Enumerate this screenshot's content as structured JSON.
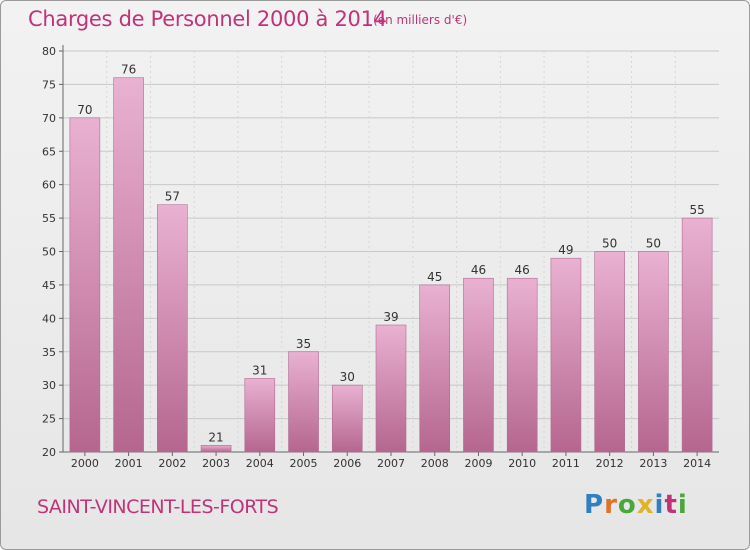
{
  "header": {
    "title": "Charges de Personnel 2000 à 2014",
    "subtitle": "(en milliers d'€)"
  },
  "footer": {
    "commune": "SAINT-VINCENT-LES-FORTS",
    "logo": "Proxiti"
  },
  "colors": {
    "accent": "#c0337a",
    "bar_top": "#e9b1d2",
    "bar_bottom": "#b5668f"
  },
  "chart_data": {
    "type": "bar",
    "title": "Charges de Personnel 2000 à 2014",
    "subtitle": "(en milliers d'€)",
    "xlabel": "",
    "ylabel": "",
    "categories": [
      "2000",
      "2001",
      "2002",
      "2003",
      "2004",
      "2005",
      "2006",
      "2007",
      "2008",
      "2009",
      "2010",
      "2011",
      "2012",
      "2013",
      "2014"
    ],
    "values": [
      70,
      76,
      57,
      21,
      31,
      35,
      30,
      39,
      45,
      46,
      46,
      49,
      50,
      50,
      55
    ],
    "ylim": [
      20,
      80
    ],
    "yticks": [
      20,
      25,
      30,
      35,
      40,
      45,
      50,
      55,
      60,
      65,
      70,
      75,
      80
    ],
    "grid": true,
    "legend": "none"
  }
}
